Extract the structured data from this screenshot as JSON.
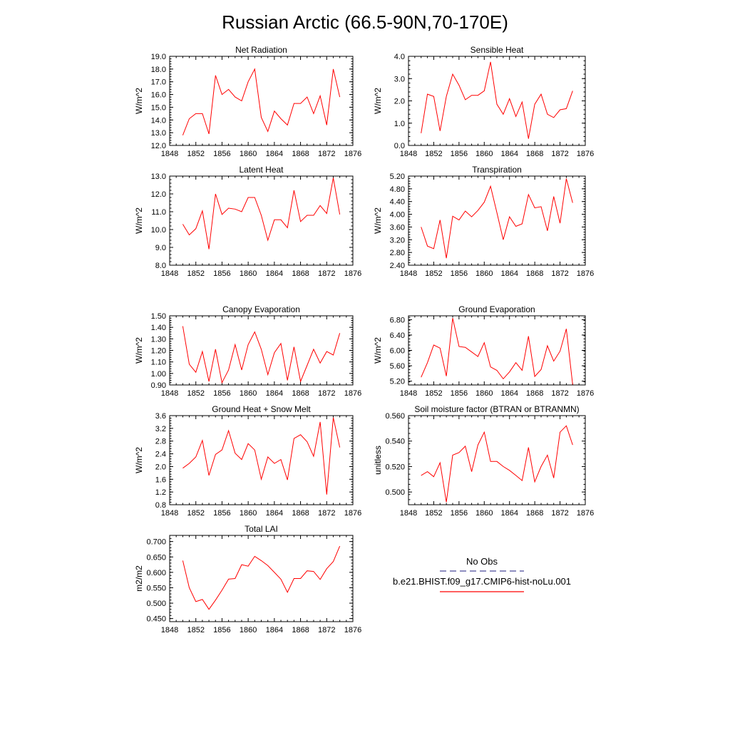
{
  "figure": {
    "title": "Russian Arctic (66.5-90N,70-170E)",
    "legend": {
      "obs_label": "No Obs",
      "obs_color": "#4a4a9a",
      "case_label": "b.e21.BHIST.f09_g17.CMIP6-hist-noLu.001",
      "case_color": "#ff0000"
    }
  },
  "chart_data": [
    {
      "type": "line",
      "title": "Net Radiation",
      "ylabel": "W/m^2",
      "xlim": [
        1848,
        1876
      ],
      "xticks": [
        1848,
        1852,
        1856,
        1860,
        1864,
        1868,
        1872,
        1876
      ],
      "ylim": [
        12.0,
        19.0
      ],
      "yticks": [
        "12.0",
        "13.0",
        "14.0",
        "15.0",
        "16.0",
        "17.0",
        "18.0",
        "19.0"
      ],
      "series": [
        {
          "color": "#ff0000",
          "x": [
            1850,
            1851,
            1852,
            1853,
            1854,
            1855,
            1856,
            1857,
            1858,
            1859,
            1860,
            1861,
            1862,
            1863,
            1864,
            1865,
            1866,
            1867,
            1868,
            1869,
            1870,
            1871,
            1872,
            1873,
            1874
          ],
          "values": [
            12.8,
            14.1,
            14.5,
            14.5,
            12.9,
            17.5,
            16.0,
            16.4,
            15.8,
            15.5,
            17.0,
            18.0,
            14.2,
            13.1,
            14.7,
            14.1,
            13.6,
            15.3,
            15.3,
            15.8,
            14.5,
            15.9,
            13.6,
            18.0,
            15.8
          ]
        }
      ]
    },
    {
      "type": "line",
      "title": "Sensible Heat",
      "ylabel": "W/m^2",
      "xlim": [
        1848,
        1876
      ],
      "xticks": [
        1848,
        1852,
        1856,
        1860,
        1864,
        1868,
        1872,
        1876
      ],
      "ylim": [
        0.0,
        4.0
      ],
      "yticks": [
        "0.0",
        "1.0",
        "2.0",
        "3.0",
        "4.0"
      ],
      "series": [
        {
          "color": "#ff0000",
          "x": [
            1850,
            1851,
            1852,
            1853,
            1854,
            1855,
            1856,
            1857,
            1858,
            1859,
            1860,
            1861,
            1862,
            1863,
            1864,
            1865,
            1866,
            1867,
            1868,
            1869,
            1870,
            1871,
            1872,
            1873,
            1874
          ],
          "values": [
            0.55,
            2.3,
            2.2,
            0.65,
            2.2,
            3.2,
            2.7,
            2.05,
            2.25,
            2.25,
            2.45,
            3.75,
            1.85,
            1.4,
            2.1,
            1.3,
            1.95,
            0.3,
            1.85,
            2.3,
            1.4,
            1.25,
            1.6,
            1.65,
            2.45
          ]
        }
      ]
    },
    {
      "type": "line",
      "title": "Latent Heat",
      "ylabel": "W/m^2",
      "xlim": [
        1848,
        1876
      ],
      "xticks": [
        1848,
        1852,
        1856,
        1860,
        1864,
        1868,
        1872,
        1876
      ],
      "ylim": [
        8.0,
        13.0
      ],
      "yticks": [
        "8.0",
        "9.0",
        "10.0",
        "11.0",
        "12.0",
        "13.0"
      ],
      "series": [
        {
          "color": "#ff0000",
          "x": [
            1850,
            1851,
            1852,
            1853,
            1854,
            1855,
            1856,
            1857,
            1858,
            1859,
            1860,
            1861,
            1862,
            1863,
            1864,
            1865,
            1866,
            1867,
            1868,
            1869,
            1870,
            1871,
            1872,
            1873,
            1874
          ],
          "values": [
            10.3,
            9.7,
            10.05,
            11.05,
            8.9,
            12.0,
            10.85,
            11.2,
            11.15,
            11.0,
            11.8,
            11.8,
            10.8,
            9.4,
            10.55,
            10.55,
            10.1,
            12.2,
            10.45,
            10.8,
            10.8,
            11.35,
            10.9,
            12.9,
            10.85
          ]
        }
      ]
    },
    {
      "type": "line",
      "title": "Transpiration",
      "ylabel": "W/m^2",
      "xlim": [
        1848,
        1876
      ],
      "xticks": [
        1848,
        1852,
        1856,
        1860,
        1864,
        1868,
        1872,
        1876
      ],
      "ylim": [
        2.4,
        5.2
      ],
      "yticks": [
        "2.40",
        "2.80",
        "3.20",
        "3.60",
        "4.00",
        "4.40",
        "4.80",
        "5.20"
      ],
      "series": [
        {
          "color": "#ff0000",
          "x": [
            1850,
            1851,
            1852,
            1853,
            1854,
            1855,
            1856,
            1857,
            1858,
            1859,
            1860,
            1861,
            1862,
            1863,
            1864,
            1865,
            1866,
            1867,
            1868,
            1869,
            1870,
            1871,
            1872,
            1873,
            1874
          ],
          "values": [
            3.6,
            3.0,
            2.92,
            3.82,
            2.62,
            3.94,
            3.82,
            4.1,
            3.92,
            4.12,
            4.38,
            4.88,
            4.05,
            3.2,
            3.92,
            3.62,
            3.7,
            4.62,
            4.2,
            4.24,
            3.48,
            4.56,
            3.72,
            5.12,
            4.36
          ]
        }
      ]
    },
    {
      "type": "line",
      "title": "Canopy Evaporation",
      "ylabel": "W/m^2",
      "xlim": [
        1848,
        1876
      ],
      "xticks": [
        1848,
        1852,
        1856,
        1860,
        1864,
        1868,
        1872,
        1876
      ],
      "ylim": [
        0.9,
        1.5
      ],
      "yticks": [
        "0.90",
        "1.00",
        "1.10",
        "1.20",
        "1.30",
        "1.40",
        "1.50"
      ],
      "series": [
        {
          "color": "#ff0000",
          "x": [
            1850,
            1851,
            1852,
            1853,
            1854,
            1855,
            1856,
            1857,
            1858,
            1859,
            1860,
            1861,
            1862,
            1863,
            1864,
            1865,
            1866,
            1867,
            1868,
            1869,
            1870,
            1871,
            1872,
            1873,
            1874
          ],
          "values": [
            1.41,
            1.08,
            1.01,
            1.19,
            0.93,
            1.21,
            0.92,
            1.03,
            1.25,
            1.03,
            1.25,
            1.36,
            1.21,
            0.99,
            1.18,
            1.26,
            0.94,
            1.23,
            0.93,
            1.07,
            1.21,
            1.09,
            1.19,
            1.16,
            1.35
          ]
        }
      ]
    },
    {
      "type": "line",
      "title": "Ground Evaporation",
      "ylabel": "W/m^2",
      "xlim": [
        1848,
        1876
      ],
      "xticks": [
        1848,
        1852,
        1856,
        1860,
        1864,
        1868,
        1872,
        1876
      ],
      "ylim": [
        5.1,
        6.9
      ],
      "yticks": [
        "5.20",
        "5.60",
        "6.00",
        "6.40",
        "6.80"
      ],
      "series": [
        {
          "color": "#ff0000",
          "x": [
            1850,
            1851,
            1852,
            1853,
            1854,
            1855,
            1856,
            1857,
            1858,
            1859,
            1860,
            1861,
            1862,
            1863,
            1864,
            1865,
            1866,
            1867,
            1868,
            1869,
            1870,
            1871,
            1872,
            1873,
            1874
          ],
          "values": [
            5.3,
            5.68,
            6.14,
            6.06,
            5.33,
            6.84,
            6.1,
            6.08,
            5.96,
            5.84,
            6.2,
            5.57,
            5.48,
            5.26,
            5.44,
            5.68,
            5.48,
            6.37,
            5.32,
            5.5,
            6.12,
            5.72,
            5.98,
            6.56,
            5.11
          ]
        }
      ]
    },
    {
      "type": "line",
      "title": "Ground Heat + Snow Melt",
      "ylabel": "W/m^2",
      "xlim": [
        1848,
        1876
      ],
      "xticks": [
        1848,
        1852,
        1856,
        1860,
        1864,
        1868,
        1872,
        1876
      ],
      "ylim": [
        0.8,
        3.6
      ],
      "yticks": [
        "0.8",
        "1.2",
        "1.6",
        "2.0",
        "2.4",
        "2.8",
        "3.2",
        "3.6"
      ],
      "series": [
        {
          "color": "#ff0000",
          "x": [
            1850,
            1851,
            1852,
            1853,
            1854,
            1855,
            1856,
            1857,
            1858,
            1859,
            1860,
            1861,
            1862,
            1863,
            1864,
            1865,
            1866,
            1867,
            1868,
            1869,
            1870,
            1871,
            1872,
            1873,
            1874
          ],
          "values": [
            1.95,
            2.1,
            2.3,
            2.82,
            1.72,
            2.38,
            2.52,
            3.13,
            2.42,
            2.22,
            2.72,
            2.52,
            1.6,
            2.3,
            2.1,
            2.22,
            1.58,
            2.88,
            3.0,
            2.78,
            2.32,
            3.4,
            1.12,
            3.54,
            2.6
          ]
        }
      ]
    },
    {
      "type": "line",
      "title": "Soil moisture factor (BTRAN or BTRANMN)",
      "ylabel": "unitless",
      "xlim": [
        1848,
        1876
      ],
      "xticks": [
        1848,
        1852,
        1856,
        1860,
        1864,
        1868,
        1872,
        1876
      ],
      "ylim": [
        0.49,
        0.56
      ],
      "yticks": [
        "0.500",
        "0.520",
        "0.540",
        "0.560"
      ],
      "series": [
        {
          "color": "#ff0000",
          "x": [
            1850,
            1851,
            1852,
            1853,
            1854,
            1855,
            1856,
            1857,
            1858,
            1859,
            1860,
            1861,
            1862,
            1863,
            1864,
            1865,
            1866,
            1867,
            1868,
            1869,
            1870,
            1871,
            1872,
            1873,
            1874
          ],
          "values": [
            0.513,
            0.516,
            0.512,
            0.523,
            0.492,
            0.529,
            0.531,
            0.536,
            0.516,
            0.537,
            0.547,
            0.524,
            0.524,
            0.52,
            0.517,
            0.513,
            0.509,
            0.535,
            0.508,
            0.52,
            0.529,
            0.511,
            0.547,
            0.552,
            0.537
          ]
        }
      ]
    },
    {
      "type": "line",
      "title": "Total LAI",
      "ylabel": "m2/m2",
      "xlim": [
        1848,
        1876
      ],
      "xticks": [
        1848,
        1852,
        1856,
        1860,
        1864,
        1868,
        1872,
        1876
      ],
      "ylim": [
        0.44,
        0.72
      ],
      "yticks": [
        "0.450",
        "0.500",
        "0.550",
        "0.600",
        "0.650",
        "0.700"
      ],
      "series": [
        {
          "color": "#ff0000",
          "x": [
            1850,
            1851,
            1852,
            1853,
            1854,
            1855,
            1856,
            1857,
            1858,
            1859,
            1860,
            1861,
            1862,
            1863,
            1864,
            1865,
            1866,
            1867,
            1868,
            1869,
            1870,
            1871,
            1872,
            1873,
            1874
          ],
          "values": [
            0.638,
            0.55,
            0.505,
            0.512,
            0.48,
            0.51,
            0.542,
            0.578,
            0.58,
            0.625,
            0.62,
            0.652,
            0.638,
            0.622,
            0.6,
            0.578,
            0.535,
            0.58,
            0.58,
            0.605,
            0.603,
            0.577,
            0.612,
            0.635,
            0.685
          ]
        }
      ]
    }
  ]
}
